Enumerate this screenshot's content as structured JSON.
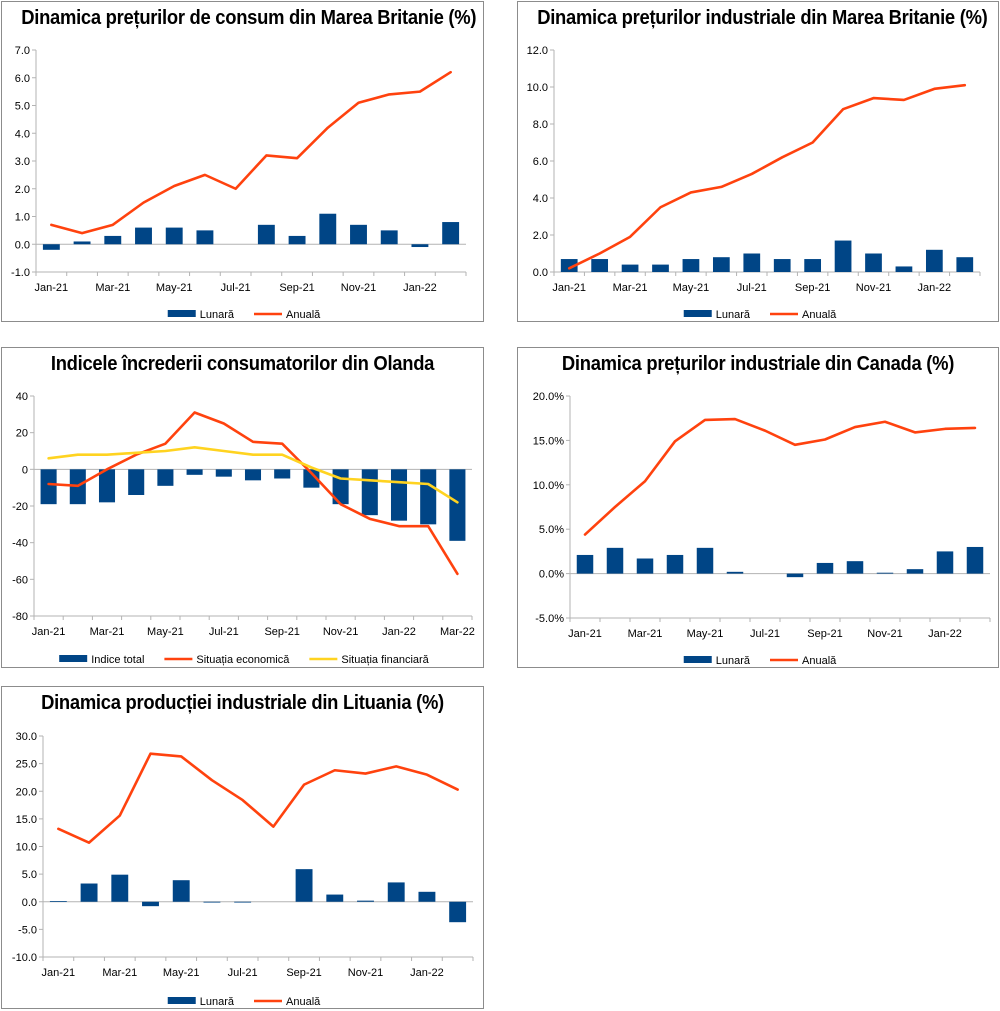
{
  "colors": {
    "bar": "#004586",
    "line_main": "#ff420e",
    "line_second": "#ffd320",
    "axis": "#b3b3b3"
  },
  "chart_data": [
    {
      "id": "uk-cpi",
      "type": "bar",
      "title": "Dinamica prețurilor de consum din Marea Britanie (%)",
      "categories": [
        "Jan-21",
        "Feb-21",
        "Mar-21",
        "Apr-21",
        "May-21",
        "Jun-21",
        "Jul-21",
        "Aug-21",
        "Sep-21",
        "Oct-21",
        "Nov-21",
        "Dec-21",
        "Jan-22",
        "Feb-22"
      ],
      "x_tick_labels": [
        "Jan-21",
        "",
        "Mar-21",
        "",
        "May-21",
        "",
        "Jul-21",
        "",
        "Sep-21",
        "",
        "Nov-21",
        "",
        "Jan-22",
        ""
      ],
      "ylim": [
        -1,
        7
      ],
      "y_ticks": [
        -1,
        0,
        1,
        2,
        3,
        4,
        5,
        6,
        7
      ],
      "y_tick_labels": [
        "-1.0",
        "0.0",
        "1.0",
        "2.0",
        "3.0",
        "4.0",
        "5.0",
        "6.0",
        "7.0"
      ],
      "series": [
        {
          "name": "Lunară",
          "type": "bar",
          "values": [
            -0.2,
            0.1,
            0.3,
            0.6,
            0.6,
            0.5,
            0.0,
            0.7,
            0.3,
            1.1,
            0.7,
            0.5,
            -0.1,
            0.8
          ]
        },
        {
          "name": "Anuală",
          "type": "line",
          "values": [
            0.7,
            0.4,
            0.7,
            1.5,
            2.1,
            2.5,
            2.0,
            3.2,
            3.1,
            4.2,
            5.1,
            5.4,
            5.5,
            6.2
          ]
        }
      ],
      "legend": "bottom"
    },
    {
      "id": "uk-ppi",
      "type": "bar",
      "title": "Dinamica prețurilor industriale din Marea Britanie (%)",
      "categories": [
        "Jan-21",
        "Feb-21",
        "Mar-21",
        "Apr-21",
        "May-21",
        "Jun-21",
        "Jul-21",
        "Aug-21",
        "Sep-21",
        "Oct-21",
        "Nov-21",
        "Dec-21",
        "Jan-22",
        "Feb-22"
      ],
      "x_tick_labels": [
        "Jan-21",
        "",
        "Mar-21",
        "",
        "May-21",
        "",
        "Jul-21",
        "",
        "Sep-21",
        "",
        "Nov-21",
        "",
        "Jan-22",
        ""
      ],
      "ylim": [
        0,
        12
      ],
      "y_ticks": [
        0,
        2,
        4,
        6,
        8,
        10,
        12
      ],
      "y_tick_labels": [
        "0.0",
        "2.0",
        "4.0",
        "6.0",
        "8.0",
        "10.0",
        "12.0"
      ],
      "series": [
        {
          "name": "Lunară",
          "type": "bar",
          "values": [
            0.7,
            0.7,
            0.4,
            0.4,
            0.7,
            0.8,
            1.0,
            0.7,
            0.7,
            1.7,
            1.0,
            0.3,
            1.2,
            0.8
          ]
        },
        {
          "name": "Anuală",
          "type": "line",
          "values": [
            0.2,
            1.0,
            1.9,
            3.5,
            4.3,
            4.6,
            5.3,
            6.2,
            7.0,
            8.8,
            9.4,
            9.3,
            9.9,
            10.1
          ]
        }
      ],
      "legend": "bottom"
    },
    {
      "id": "nl-confidence",
      "type": "bar",
      "title": "Indicele încrederii consumatorilor din Olanda",
      "categories": [
        "Jan-21",
        "Feb-21",
        "Mar-21",
        "Apr-21",
        "May-21",
        "Jun-21",
        "Jul-21",
        "Aug-21",
        "Sep-21",
        "Oct-21",
        "Nov-21",
        "Dec-21",
        "Jan-22",
        "Feb-22",
        "Mar-22"
      ],
      "x_tick_labels": [
        "Jan-21",
        "",
        "Mar-21",
        "",
        "May-21",
        "",
        "Jul-21",
        "",
        "Sep-21",
        "",
        "Nov-21",
        "",
        "Jan-22",
        "",
        "Mar-22"
      ],
      "ylim": [
        -80,
        40
      ],
      "y_ticks": [
        -80,
        -60,
        -40,
        -20,
        0,
        20,
        40
      ],
      "y_tick_labels": [
        "-80",
        "-60",
        "-40",
        "-20",
        "0",
        "20",
        "40"
      ],
      "series": [
        {
          "name": "Indice total",
          "type": "bar",
          "values": [
            -19,
            -19,
            -18,
            -14,
            -9,
            -3,
            -4,
            -6,
            -5,
            -10,
            -19,
            -25,
            -28,
            -30,
            -39
          ]
        },
        {
          "name": "Situația economică",
          "type": "line",
          "values": [
            -8,
            -9,
            0,
            8,
            14,
            31,
            25,
            15,
            14,
            -2,
            -19,
            -27,
            -31,
            -31,
            -57
          ]
        },
        {
          "name": "Situația financiară",
          "type": "line",
          "values": [
            6,
            8,
            8,
            9,
            10,
            12,
            10,
            8,
            8,
            1,
            -5,
            -6,
            -7,
            -8,
            -18
          ]
        }
      ],
      "legend": "bottom"
    },
    {
      "id": "ca-ppi",
      "type": "bar",
      "title": "Dinamica prețurilor industriale din Canada (%)",
      "categories": [
        "Jan-21",
        "Feb-21",
        "Mar-21",
        "Apr-21",
        "May-21",
        "Jun-21",
        "Jul-21",
        "Aug-21",
        "Sep-21",
        "Oct-21",
        "Nov-21",
        "Dec-21",
        "Jan-22",
        "Feb-22"
      ],
      "x_tick_labels": [
        "Jan-21",
        "",
        "Mar-21",
        "",
        "May-21",
        "",
        "Jul-21",
        "",
        "Sep-21",
        "",
        "Nov-21",
        "",
        "Jan-22",
        ""
      ],
      "ylim": [
        -5,
        20
      ],
      "y_ticks": [
        -5,
        0,
        5,
        10,
        15,
        20
      ],
      "y_tick_labels": [
        "-5.0%",
        "0.0%",
        "5.0%",
        "10.0%",
        "15.0%",
        "20.0%"
      ],
      "series": [
        {
          "name": "Lunară",
          "type": "bar",
          "values": [
            2.1,
            2.9,
            1.7,
            2.1,
            2.9,
            0.2,
            0.0,
            -0.4,
            1.2,
            1.4,
            0.1,
            0.5,
            2.5,
            3.0
          ]
        },
        {
          "name": "Anuală",
          "type": "line",
          "values": [
            4.4,
            7.5,
            10.4,
            14.9,
            17.3,
            17.4,
            16.1,
            14.5,
            15.1,
            16.5,
            17.1,
            15.9,
            16.3,
            16.4
          ]
        }
      ],
      "legend": "bottom"
    },
    {
      "id": "lt-production",
      "type": "bar",
      "title": "Dinamica producției industriale din Lituania (%)",
      "categories": [
        "Jan-21",
        "Feb-21",
        "Mar-21",
        "Apr-21",
        "May-21",
        "Jun-21",
        "Jul-21",
        "Aug-21",
        "Sep-21",
        "Oct-21",
        "Nov-21",
        "Dec-21",
        "Jan-22",
        "Feb-22"
      ],
      "x_tick_labels": [
        "Jan-21",
        "",
        "Mar-21",
        "",
        "May-21",
        "",
        "Jul-21",
        "",
        "Sep-21",
        "",
        "Nov-21",
        "",
        "Jan-22",
        ""
      ],
      "ylim": [
        -10,
        30
      ],
      "y_ticks": [
        -10,
        -5,
        0,
        5,
        10,
        15,
        20,
        25,
        30
      ],
      "y_tick_labels": [
        "-10.0",
        "-5.0",
        "0.0",
        "5.0",
        "10.0",
        "15.0",
        "20.0",
        "25.0",
        "30.0"
      ],
      "series": [
        {
          "name": "Lunară",
          "type": "bar",
          "values": [
            0.1,
            3.3,
            4.9,
            -0.8,
            3.9,
            -0.1,
            -0.1,
            0.0,
            5.9,
            1.3,
            0.2,
            3.5,
            1.8,
            -3.7
          ]
        },
        {
          "name": "Anuală",
          "type": "line",
          "values": [
            13.2,
            10.7,
            15.6,
            26.8,
            26.3,
            22.0,
            18.4,
            13.6,
            21.2,
            23.8,
            23.2,
            24.5,
            23.0,
            20.3
          ]
        }
      ],
      "legend": "bottom"
    }
  ]
}
